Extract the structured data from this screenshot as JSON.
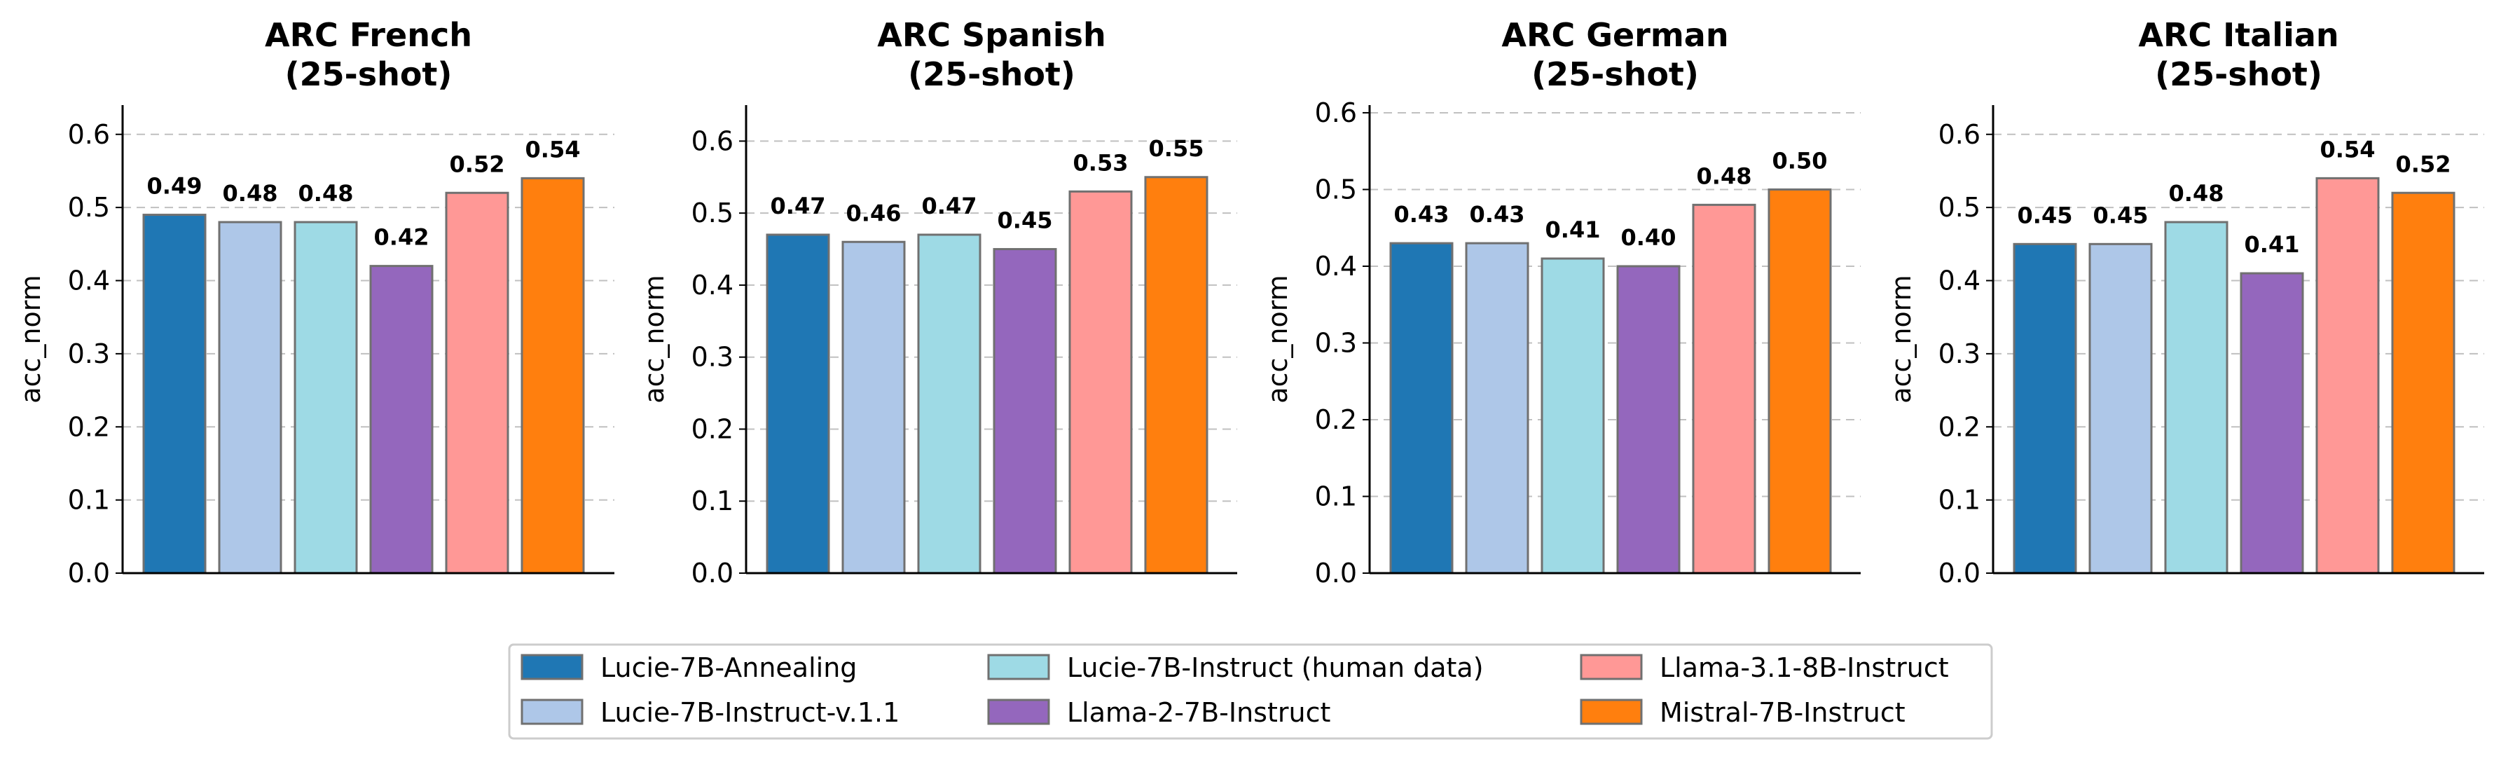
{
  "chart_data": [
    {
      "type": "bar",
      "title_line1": "ARC French",
      "title_line2": "(25-shot)",
      "ylabel": "acc_norm",
      "ylim": [
        0,
        0.64
      ],
      "yticks": [
        "0.0",
        "0.1",
        "0.2",
        "0.3",
        "0.4",
        "0.5",
        "0.6"
      ],
      "grid": true,
      "values": [
        0.49,
        0.48,
        0.48,
        0.42,
        0.52,
        0.54
      ],
      "labels": [
        "0.49",
        "0.48",
        "0.48",
        "0.42",
        "0.52",
        "0.54"
      ]
    },
    {
      "type": "bar",
      "title_line1": "ARC Spanish",
      "title_line2": "(25-shot)",
      "ylabel": "acc_norm",
      "ylim": [
        0,
        0.65
      ],
      "yticks": [
        "0.0",
        "0.1",
        "0.2",
        "0.3",
        "0.4",
        "0.5",
        "0.6"
      ],
      "grid": true,
      "values": [
        0.47,
        0.46,
        0.47,
        0.45,
        0.53,
        0.55
      ],
      "labels": [
        "0.47",
        "0.46",
        "0.47",
        "0.45",
        "0.53",
        "0.55"
      ]
    },
    {
      "type": "bar",
      "title_line1": "ARC German",
      "title_line2": "(25-shot)",
      "ylabel": "acc_norm",
      "ylim": [
        0,
        0.61
      ],
      "yticks": [
        "0.0",
        "0.1",
        "0.2",
        "0.3",
        "0.4",
        "0.5",
        "0.6"
      ],
      "grid": true,
      "values": [
        0.43,
        0.43,
        0.41,
        0.4,
        0.48,
        0.5
      ],
      "labels": [
        "0.43",
        "0.43",
        "0.41",
        "0.40",
        "0.48",
        "0.50"
      ]
    },
    {
      "type": "bar",
      "title_line1": "ARC Italian",
      "title_line2": "(25-shot)",
      "ylabel": "acc_norm",
      "ylim": [
        0,
        0.64
      ],
      "yticks": [
        "0.0",
        "0.1",
        "0.2",
        "0.3",
        "0.4",
        "0.5",
        "0.6"
      ],
      "grid": true,
      "values": [
        0.45,
        0.45,
        0.48,
        0.41,
        0.54,
        0.52
      ],
      "labels": [
        "0.45",
        "0.45",
        "0.48",
        "0.41",
        "0.54",
        "0.52"
      ]
    }
  ],
  "legend": {
    "position": "bottom-center",
    "items": [
      {
        "name": "Lucie-7B-Annealing",
        "color": "#1f77b4"
      },
      {
        "name": "Lucie-7B-Instruct-v.1.1",
        "color": "#aec7e8"
      },
      {
        "name": "Lucie-7B-Instruct (human data)",
        "color": "#9edae5"
      },
      {
        "name": "Llama-2-7B-Instruct",
        "color": "#9467bd"
      },
      {
        "name": "Llama-3.1-8B-Instruct",
        "color": "#ff9896"
      },
      {
        "name": "Mistral-7B-Instruct",
        "color": "#ff7f0e"
      }
    ]
  },
  "colors": {
    "bar_edge": "#707070",
    "grid": "#c0c0c0",
    "axis": "#000000",
    "legend_border": "#cccccc"
  }
}
